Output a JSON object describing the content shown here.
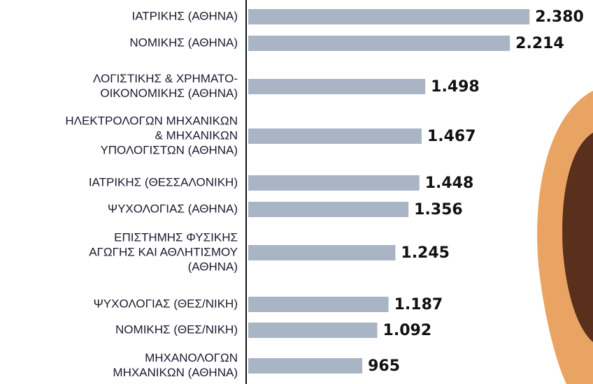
{
  "chart_data": {
    "type": "bar",
    "orientation": "horizontal",
    "color": "#a9b5c4",
    "categories": [
      [
        "ΙΑΤΡΙΚΗΣ (ΑΘΗΝΑ)"
      ],
      [
        "ΝΟΜΙΚΗΣ (ΑΘΗΝΑ)"
      ],
      [
        "ΛΟΓΙΣΤΙΚΗΣ & ΧΡΗΜΑΤΟ-",
        "ΟΙΚΟΝΟΜΙΚΗΣ (ΑΘΗΝΑ)"
      ],
      [
        "ΗΛΕΚΤΡΟΛΟΓΩΝ ΜΗΧΑΝΙΚΩΝ",
        "& ΜΗΧΑΝΙΚΩΝ",
        "ΥΠΟΛΟΓΙΣΤΩΝ (ΑΘΗΝΑ)"
      ],
      [
        "ΙΑΤΡΙΚΗΣ (ΘΕΣΣΑΛΟΝΙΚΗ)"
      ],
      [
        "ΨΥΧΟΛΟΓΙΑΣ (ΑΘΗΝΑ)"
      ],
      [
        "ΕΠΙΣΤΗΜΗΣ ΦΥΣΙΚΗΣ",
        "ΑΓΩΓΗΣ ΚΑΙ ΑΘΛΗΤΙΣΜΟΥ",
        "(ΑΘΗΝΑ)"
      ],
      [
        "ΨΥΧΟΛΟΓΙΑΣ (ΘΕΣ/ΝΙΚΗ)"
      ],
      [
        "ΝΟΜΙΚΗΣ (ΘΕΣ/ΝΙΚΗ)"
      ],
      [
        "ΜΗΧΑΝΟΛΟΓΩΝ",
        "ΜΗΧΑΝΙΚΩΝ (ΑΘΗΝΑ)"
      ]
    ],
    "values": [
      2380,
      2214,
      1498,
      1467,
      1448,
      1356,
      1245,
      1187,
      1092,
      965
    ],
    "value_labels": [
      "2.380",
      "2.214",
      "1.498",
      "1.467",
      "1.448",
      "1.356",
      "1.245",
      "1.187",
      "1.092",
      "965"
    ]
  }
}
